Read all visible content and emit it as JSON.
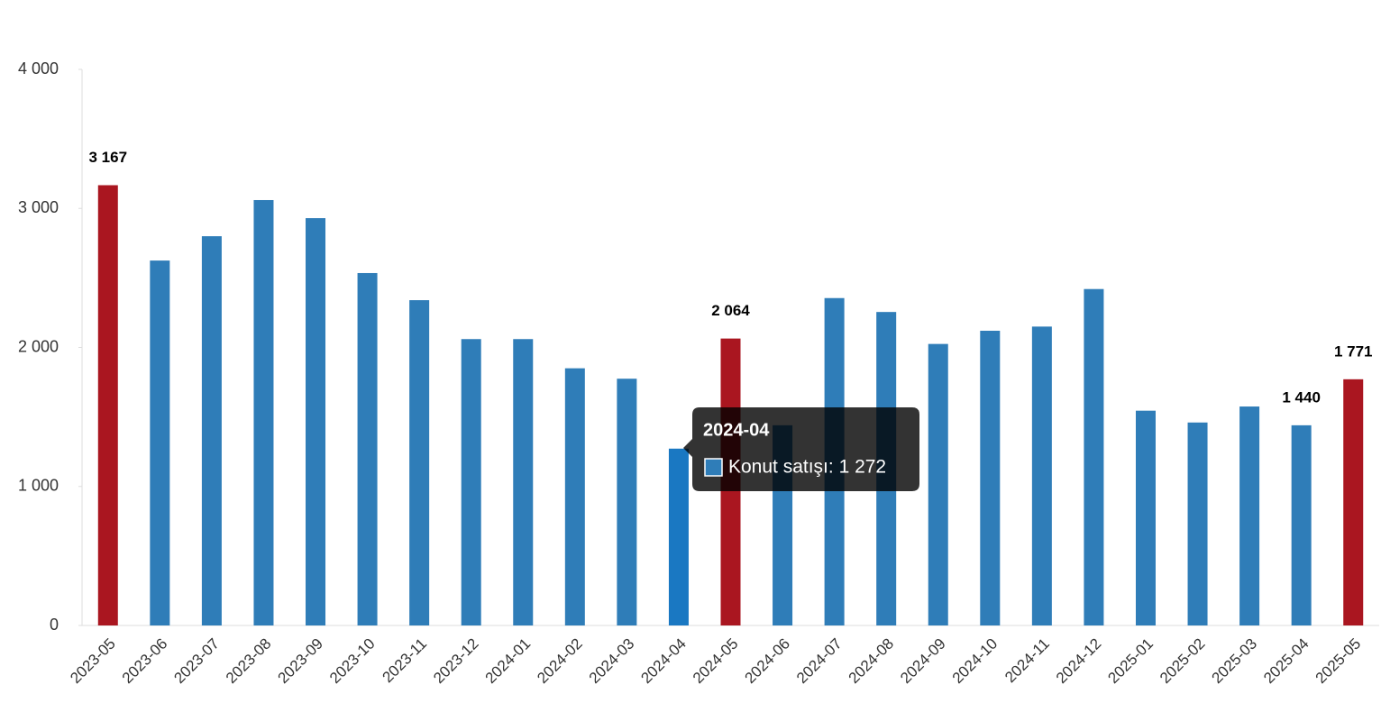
{
  "chart_data": {
    "type": "bar",
    "categories": [
      "2023-05",
      "2023-06",
      "2023-07",
      "2023-08",
      "2023-09",
      "2023-10",
      "2023-11",
      "2023-12",
      "2024-01",
      "2024-02",
      "2024-03",
      "2024-04",
      "2024-05",
      "2024-06",
      "2024-07",
      "2024-08",
      "2024-09",
      "2024-10",
      "2024-11",
      "2024-12",
      "2025-01",
      "2025-02",
      "2025-03",
      "2025-04",
      "2025-05"
    ],
    "values": [
      3167,
      2625,
      2800,
      3060,
      2930,
      2535,
      2340,
      2060,
      2060,
      1850,
      1775,
      1272,
      2064,
      1440,
      2355,
      2255,
      2025,
      2120,
      2150,
      2420,
      1545,
      1460,
      1575,
      1440,
      1771
    ],
    "value_labels": [
      "3 167",
      null,
      null,
      null,
      null,
      null,
      null,
      null,
      null,
      null,
      null,
      null,
      "2 064",
      null,
      null,
      null,
      null,
      null,
      null,
      null,
      null,
      null,
      null,
      "1 440",
      "1 771"
    ],
    "colors": [
      "#aa1620",
      "#2f7db8",
      "#2f7db8",
      "#2f7db8",
      "#2f7db8",
      "#2f7db8",
      "#2f7db8",
      "#2f7db8",
      "#2f7db8",
      "#2f7db8",
      "#2f7db8",
      "#1a78c2",
      "#aa1620",
      "#2f7db8",
      "#2f7db8",
      "#2f7db8",
      "#2f7db8",
      "#2f7db8",
      "#2f7db8",
      "#2f7db8",
      "#2f7db8",
      "#2f7db8",
      "#2f7db8",
      "#2f7db8",
      "#aa1620"
    ],
    "ylim": [
      0,
      4000
    ],
    "yticks": [
      0,
      {
        "value": 1000,
        "label": "1 000"
      },
      {
        "value": 2000,
        "label": "2 000"
      },
      {
        "value": 3000,
        "label": "3 000"
      },
      {
        "value": 4000,
        "label": "4 000"
      }
    ],
    "tooltip": {
      "title": "2024-04",
      "text": "Konut satışı: 1 272",
      "color": "#2f7db8"
    }
  }
}
